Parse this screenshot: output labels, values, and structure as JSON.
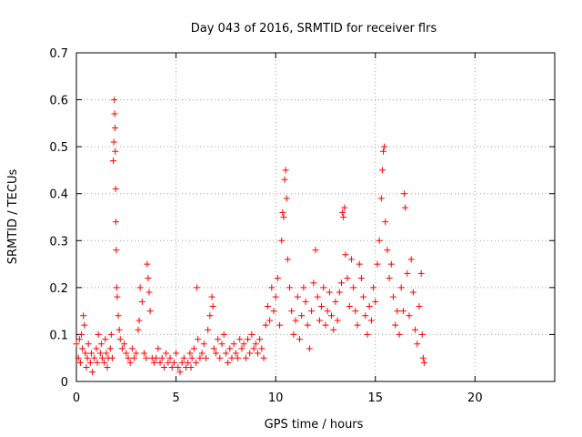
{
  "chart_data": {
    "type": "scatter",
    "title": "Day 043 of 2016, SRMTID for receiver flrs",
    "xlabel": "GPS time / hours",
    "ylabel": "SRMTID / TECUs",
    "xlim": [
      0,
      24
    ],
    "ylim": [
      0,
      0.7
    ],
    "x_ticks": [
      0,
      5,
      10,
      15,
      20
    ],
    "x_tick_labels": [
      "0",
      "5",
      "10",
      "15",
      "20"
    ],
    "y_ticks": [
      0,
      0.1,
      0.2,
      0.3,
      0.4,
      0.5,
      0.6,
      0.7
    ],
    "y_tick_labels": [
      "0",
      "0.1",
      "0.2",
      "0.3",
      "0.4",
      "0.5",
      "0.6",
      "0.7"
    ],
    "grid": true,
    "marker": "+",
    "series": [
      {
        "name": "SRMTID",
        "color": "#ff0000",
        "points": [
          [
            0.0,
            0.08
          ],
          [
            0.1,
            0.05
          ],
          [
            0.15,
            0.09
          ],
          [
            0.2,
            0.04
          ],
          [
            0.25,
            0.1
          ],
          [
            0.3,
            0.07
          ],
          [
            0.35,
            0.14
          ],
          [
            0.4,
            0.12
          ],
          [
            0.45,
            0.06
          ],
          [
            0.5,
            0.03
          ],
          [
            0.55,
            0.05
          ],
          [
            0.6,
            0.08
          ],
          [
            0.7,
            0.04
          ],
          [
            0.75,
            0.06
          ],
          [
            0.8,
            0.02
          ],
          [
            0.9,
            0.05
          ],
          [
            1.0,
            0.07
          ],
          [
            1.05,
            0.04
          ],
          [
            1.1,
            0.1
          ],
          [
            1.2,
            0.06
          ],
          [
            1.25,
            0.08
          ],
          [
            1.3,
            0.05
          ],
          [
            1.4,
            0.04
          ],
          [
            1.45,
            0.09
          ],
          [
            1.5,
            0.06
          ],
          [
            1.55,
            0.03
          ],
          [
            1.6,
            0.05
          ],
          [
            1.7,
            0.07
          ],
          [
            1.75,
            0.1
          ],
          [
            1.8,
            0.05
          ],
          [
            1.85,
            0.47
          ],
          [
            1.88,
            0.51
          ],
          [
            1.9,
            0.6
          ],
          [
            1.92,
            0.57
          ],
          [
            1.94,
            0.54
          ],
          [
            1.95,
            0.49
          ],
          [
            1.97,
            0.41
          ],
          [
            1.98,
            0.34
          ],
          [
            2.0,
            0.28
          ],
          [
            2.02,
            0.2
          ],
          [
            2.05,
            0.18
          ],
          [
            2.1,
            0.14
          ],
          [
            2.15,
            0.11
          ],
          [
            2.2,
            0.09
          ],
          [
            2.3,
            0.07
          ],
          [
            2.4,
            0.08
          ],
          [
            2.5,
            0.06
          ],
          [
            2.6,
            0.05
          ],
          [
            2.7,
            0.04
          ],
          [
            2.8,
            0.07
          ],
          [
            2.9,
            0.05
          ],
          [
            3.0,
            0.06
          ],
          [
            3.1,
            0.11
          ],
          [
            3.15,
            0.13
          ],
          [
            3.2,
            0.2
          ],
          [
            3.3,
            0.17
          ],
          [
            3.4,
            0.06
          ],
          [
            3.5,
            0.05
          ],
          [
            3.55,
            0.25
          ],
          [
            3.6,
            0.22
          ],
          [
            3.65,
            0.19
          ],
          [
            3.7,
            0.15
          ],
          [
            3.8,
            0.05
          ],
          [
            3.9,
            0.04
          ],
          [
            4.0,
            0.05
          ],
          [
            4.1,
            0.07
          ],
          [
            4.2,
            0.04
          ],
          [
            4.3,
            0.05
          ],
          [
            4.4,
            0.03
          ],
          [
            4.5,
            0.06
          ],
          [
            4.6,
            0.04
          ],
          [
            4.7,
            0.05
          ],
          [
            4.8,
            0.03
          ],
          [
            4.9,
            0.04
          ],
          [
            5.0,
            0.06
          ],
          [
            5.1,
            0.03
          ],
          [
            5.2,
            0.02
          ],
          [
            5.3,
            0.04
          ],
          [
            5.4,
            0.05
          ],
          [
            5.5,
            0.03
          ],
          [
            5.6,
            0.04
          ],
          [
            5.7,
            0.06
          ],
          [
            5.75,
            0.03
          ],
          [
            5.8,
            0.05
          ],
          [
            5.9,
            0.07
          ],
          [
            6.0,
            0.04
          ],
          [
            6.05,
            0.2
          ],
          [
            6.1,
            0.09
          ],
          [
            6.2,
            0.05
          ],
          [
            6.3,
            0.06
          ],
          [
            6.4,
            0.08
          ],
          [
            6.5,
            0.05
          ],
          [
            6.6,
            0.11
          ],
          [
            6.7,
            0.14
          ],
          [
            6.8,
            0.18
          ],
          [
            6.85,
            0.16
          ],
          [
            6.9,
            0.07
          ],
          [
            7.0,
            0.06
          ],
          [
            7.1,
            0.09
          ],
          [
            7.2,
            0.05
          ],
          [
            7.3,
            0.08
          ],
          [
            7.4,
            0.1
          ],
          [
            7.5,
            0.06
          ],
          [
            7.6,
            0.04
          ],
          [
            7.7,
            0.07
          ],
          [
            7.8,
            0.05
          ],
          [
            7.9,
            0.08
          ],
          [
            8.0,
            0.06
          ],
          [
            8.1,
            0.05
          ],
          [
            8.2,
            0.09
          ],
          [
            8.3,
            0.07
          ],
          [
            8.4,
            0.08
          ],
          [
            8.5,
            0.05
          ],
          [
            8.6,
            0.09
          ],
          [
            8.7,
            0.06
          ],
          [
            8.8,
            0.1
          ],
          [
            8.9,
            0.07
          ],
          [
            9.0,
            0.08
          ],
          [
            9.1,
            0.06
          ],
          [
            9.2,
            0.09
          ],
          [
            9.3,
            0.07
          ],
          [
            9.4,
            0.05
          ],
          [
            9.5,
            0.12
          ],
          [
            9.6,
            0.16
          ],
          [
            9.7,
            0.13
          ],
          [
            9.8,
            0.2
          ],
          [
            9.9,
            0.15
          ],
          [
            10.0,
            0.18
          ],
          [
            10.1,
            0.22
          ],
          [
            10.2,
            0.12
          ],
          [
            10.3,
            0.3
          ],
          [
            10.35,
            0.36
          ],
          [
            10.4,
            0.35
          ],
          [
            10.45,
            0.43
          ],
          [
            10.5,
            0.45
          ],
          [
            10.55,
            0.39
          ],
          [
            10.6,
            0.26
          ],
          [
            10.7,
            0.2
          ],
          [
            10.8,
            0.15
          ],
          [
            10.9,
            0.1
          ],
          [
            11.0,
            0.13
          ],
          [
            11.1,
            0.18
          ],
          [
            11.2,
            0.09
          ],
          [
            11.3,
            0.14
          ],
          [
            11.4,
            0.2
          ],
          [
            11.5,
            0.17
          ],
          [
            11.6,
            0.12
          ],
          [
            11.7,
            0.07
          ],
          [
            11.8,
            0.15
          ],
          [
            11.9,
            0.21
          ],
          [
            12.0,
            0.28
          ],
          [
            12.1,
            0.18
          ],
          [
            12.2,
            0.13
          ],
          [
            12.3,
            0.16
          ],
          [
            12.4,
            0.2
          ],
          [
            12.5,
            0.12
          ],
          [
            12.6,
            0.15
          ],
          [
            12.7,
            0.19
          ],
          [
            12.8,
            0.14
          ],
          [
            12.9,
            0.11
          ],
          [
            13.0,
            0.17
          ],
          [
            13.1,
            0.13
          ],
          [
            13.2,
            0.19
          ],
          [
            13.3,
            0.21
          ],
          [
            13.35,
            0.36
          ],
          [
            13.4,
            0.35
          ],
          [
            13.45,
            0.37
          ],
          [
            13.5,
            0.27
          ],
          [
            13.6,
            0.22
          ],
          [
            13.7,
            0.16
          ],
          [
            13.8,
            0.26
          ],
          [
            13.9,
            0.2
          ],
          [
            14.0,
            0.15
          ],
          [
            14.1,
            0.12
          ],
          [
            14.2,
            0.25
          ],
          [
            14.3,
            0.22
          ],
          [
            14.4,
            0.18
          ],
          [
            14.5,
            0.14
          ],
          [
            14.6,
            0.1
          ],
          [
            14.7,
            0.16
          ],
          [
            14.8,
            0.13
          ],
          [
            14.9,
            0.2
          ],
          [
            15.0,
            0.17
          ],
          [
            15.1,
            0.25
          ],
          [
            15.2,
            0.3
          ],
          [
            15.3,
            0.39
          ],
          [
            15.35,
            0.45
          ],
          [
            15.4,
            0.49
          ],
          [
            15.45,
            0.5
          ],
          [
            15.5,
            0.34
          ],
          [
            15.6,
            0.28
          ],
          [
            15.7,
            0.22
          ],
          [
            15.8,
            0.25
          ],
          [
            15.9,
            0.18
          ],
          [
            16.0,
            0.12
          ],
          [
            16.1,
            0.15
          ],
          [
            16.2,
            0.1
          ],
          [
            16.3,
            0.2
          ],
          [
            16.4,
            0.15
          ],
          [
            16.45,
            0.4
          ],
          [
            16.5,
            0.37
          ],
          [
            16.6,
            0.23
          ],
          [
            16.7,
            0.14
          ],
          [
            16.8,
            0.26
          ],
          [
            16.9,
            0.19
          ],
          [
            17.0,
            0.11
          ],
          [
            17.1,
            0.08
          ],
          [
            17.2,
            0.16
          ],
          [
            17.3,
            0.23
          ],
          [
            17.35,
            0.1
          ],
          [
            17.4,
            0.05
          ],
          [
            17.45,
            0.04
          ]
        ]
      }
    ]
  }
}
